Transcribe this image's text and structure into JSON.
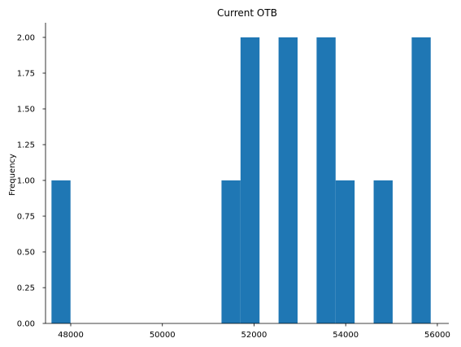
{
  "chart_data": {
    "type": "bar",
    "title": "Current OTB",
    "xlabel": "",
    "ylabel": "Frequency",
    "xlim": [
      47450,
      56250
    ],
    "ylim": [
      0,
      2.0
    ],
    "x_ticks": [
      48000,
      50000,
      52000,
      54000,
      56000
    ],
    "x_tick_labels": [
      "48000",
      "50000",
      "52000",
      "54000",
      "56000"
    ],
    "y_ticks": [
      0,
      0.25,
      0.5,
      0.75,
      1.0,
      1.25,
      1.5,
      1.75,
      2.0
    ],
    "y_tick_labels": [
      "0.00",
      "0.25",
      "0.50",
      "0.75",
      "1.00",
      "1.25",
      "1.50",
      "1.75",
      "2.00"
    ],
    "bar_color": "#1f77b4",
    "grid": false,
    "bins": [
      {
        "start": 47580,
        "end": 47995,
        "count": 1
      },
      {
        "start": 51290,
        "end": 51705,
        "count": 1
      },
      {
        "start": 51705,
        "end": 52120,
        "count": 2
      },
      {
        "start": 52535,
        "end": 52950,
        "count": 2
      },
      {
        "start": 53365,
        "end": 53780,
        "count": 2
      },
      {
        "start": 53780,
        "end": 54195,
        "count": 1
      },
      {
        "start": 54610,
        "end": 55025,
        "count": 1
      },
      {
        "start": 55440,
        "end": 55855,
        "count": 2
      }
    ]
  }
}
